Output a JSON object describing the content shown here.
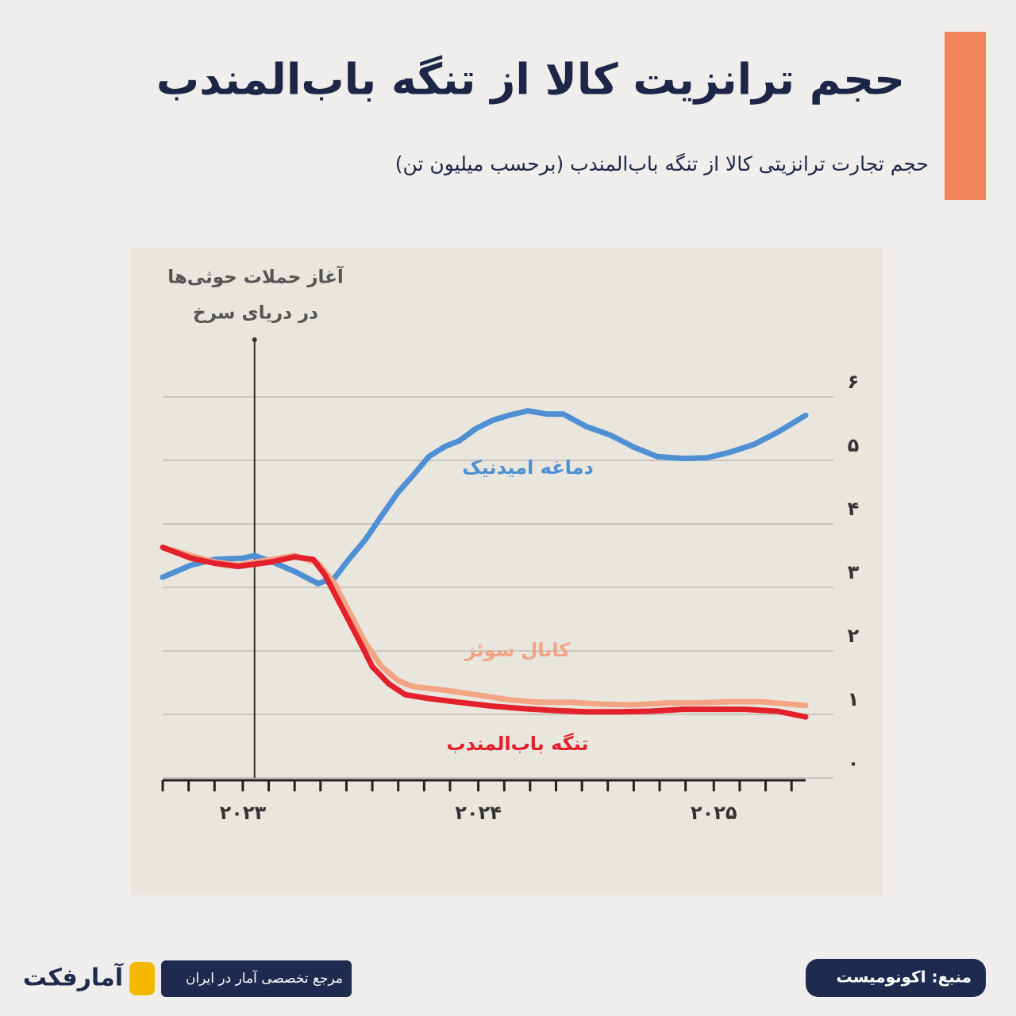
{
  "chart_data": {
    "type": "line",
    "title": "حجم ترانزیت کالا از تنگه باب‌المندب",
    "subtitle": "حجم تجارت ترانزیتی کالا از تنگه باب‌المندب (برحسب میلیون تن)",
    "annotation": {
      "x": 2023.05,
      "lines": [
        "آغاز حملات حوثی‌ها",
        "در دریای سرخ"
      ]
    },
    "xlim": [
      2022.66,
      2025.39
    ],
    "xticks": [
      {
        "value": 2023,
        "label": "۲۰۲۳"
      },
      {
        "value": 2024,
        "label": "۲۰۲۴"
      },
      {
        "value": 2025,
        "label": "۲۰۲۵"
      }
    ],
    "xminorticks": [
      2022.66,
      2022.77,
      2022.88,
      2023.0,
      2023.11,
      2023.22,
      2023.33,
      2023.44,
      2023.55,
      2023.66,
      2023.77,
      2023.88,
      2024.0,
      2024.11,
      2024.22,
      2024.33,
      2024.44,
      2024.55,
      2024.66,
      2024.77,
      2024.88,
      2025.0,
      2025.11,
      2025.22,
      2025.33
    ],
    "ylim": [
      0,
      6
    ],
    "yticks": [
      {
        "value": 0,
        "label": "۰"
      },
      {
        "value": 1,
        "label": "۱"
      },
      {
        "value": 2,
        "label": "۲"
      },
      {
        "value": 3,
        "label": "۳"
      },
      {
        "value": 4,
        "label": "۴"
      },
      {
        "value": 5,
        "label": "۵"
      },
      {
        "value": 6,
        "label": "۶"
      }
    ],
    "grid": true,
    "series": [
      {
        "name": "دماغه امیدنیک",
        "color": "#4f8fd3",
        "x": [
          2022.66,
          2022.78,
          2022.88,
          2023.0,
          2023.05,
          2023.12,
          2023.22,
          2023.32,
          2023.39,
          2023.45,
          2023.52,
          2023.59,
          2023.66,
          2023.72,
          2023.79,
          2023.86,
          2023.92,
          2023.99,
          2024.06,
          2024.13,
          2024.21,
          2024.29,
          2024.36,
          2024.46,
          2024.56,
          2024.66,
          2024.76,
          2024.87,
          2024.97,
          2025.07,
          2025.17,
          2025.27,
          2025.39
        ],
        "values": [
          3.16,
          3.35,
          3.44,
          3.46,
          3.5,
          3.41,
          3.25,
          3.06,
          3.15,
          3.44,
          3.75,
          4.13,
          4.5,
          4.75,
          5.06,
          5.22,
          5.31,
          5.5,
          5.63,
          5.71,
          5.78,
          5.73,
          5.73,
          5.53,
          5.4,
          5.21,
          5.06,
          5.03,
          5.04,
          5.13,
          5.25,
          5.44,
          5.71
        ]
      },
      {
        "name": "کانال سوئز",
        "color": "#f2a485",
        "x": [
          2022.66,
          2022.78,
          2022.88,
          2022.98,
          2023.12,
          2023.22,
          2023.32,
          2023.39,
          2023.45,
          2023.52,
          2023.59,
          2023.66,
          2023.72,
          2023.86,
          2023.99,
          2024.13,
          2024.26,
          2024.39,
          2024.53,
          2024.66,
          2024.8,
          2024.93,
          2025.07,
          2025.2,
          2025.39
        ],
        "values": [
          3.63,
          3.5,
          3.4,
          3.35,
          3.44,
          3.5,
          3.38,
          3.06,
          2.63,
          2.13,
          1.75,
          1.53,
          1.44,
          1.38,
          1.31,
          1.23,
          1.19,
          1.19,
          1.16,
          1.15,
          1.18,
          1.18,
          1.2,
          1.2,
          1.14
        ]
      },
      {
        "name": "تنگه باب‌المندب",
        "color": "#e3202b",
        "x": [
          2022.66,
          2022.78,
          2022.88,
          2022.98,
          2023.12,
          2023.22,
          2023.3,
          2023.35,
          2023.42,
          2023.49,
          2023.55,
          2023.62,
          2023.69,
          2023.79,
          2023.92,
          2024.06,
          2024.19,
          2024.33,
          2024.46,
          2024.6,
          2024.73,
          2024.87,
          2025.0,
          2025.13,
          2025.27,
          2025.39
        ],
        "values": [
          3.63,
          3.46,
          3.38,
          3.33,
          3.4,
          3.48,
          3.44,
          3.19,
          2.69,
          2.19,
          1.75,
          1.48,
          1.31,
          1.25,
          1.19,
          1.13,
          1.09,
          1.06,
          1.04,
          1.04,
          1.05,
          1.08,
          1.08,
          1.08,
          1.05,
          0.96
        ]
      }
    ]
  },
  "footer": {
    "source": "منبع: اکونومیست",
    "tagline": "مرجع تخصصی آمار در ایران",
    "brand": "آمارفکت"
  }
}
